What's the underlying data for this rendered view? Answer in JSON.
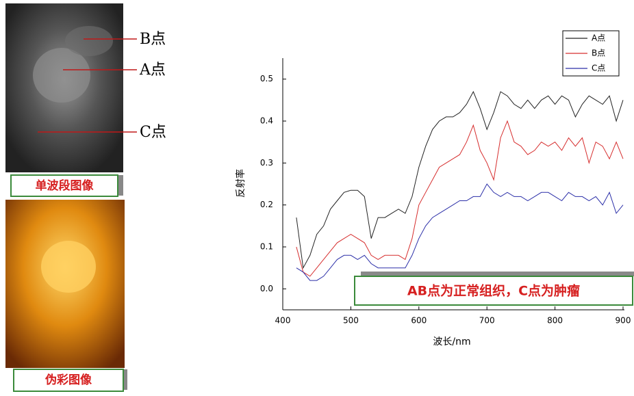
{
  "images": {
    "gray": {
      "caption": "单波段图像",
      "points": [
        "B点",
        "A点",
        "C点"
      ]
    },
    "pseudo": {
      "caption": "伪彩图像"
    }
  },
  "chart_data": {
    "type": "line",
    "xlabel": "波长/nm",
    "ylabel": "反射率",
    "annotation": "AB点为正常组织，C点为肿瘤",
    "xlim": [
      400,
      900
    ],
    "xticks": [
      400,
      500,
      600,
      700,
      800,
      900
    ],
    "ylim": [
      -0.05,
      0.55
    ],
    "yticks": [
      {
        "value": 0,
        "label": "0.0"
      },
      0.1,
      0.2,
      0.3,
      0.4,
      0.5
    ],
    "legend": "upper right",
    "x": [
      420,
      430,
      440,
      450,
      460,
      470,
      480,
      490,
      500,
      510,
      520,
      530,
      540,
      550,
      560,
      570,
      580,
      590,
      600,
      610,
      620,
      630,
      640,
      650,
      660,
      670,
      680,
      690,
      700,
      710,
      720,
      730,
      740,
      750,
      760,
      770,
      780,
      790,
      800,
      810,
      820,
      830,
      840,
      850,
      860,
      870,
      880,
      890,
      900
    ],
    "series": [
      {
        "name": "A点",
        "color": "#222222",
        "values": [
          0.17,
          0.05,
          0.08,
          0.13,
          0.15,
          0.19,
          0.21,
          0.23,
          0.235,
          0.235,
          0.22,
          0.12,
          0.17,
          0.17,
          0.18,
          0.19,
          0.18,
          0.22,
          0.29,
          0.34,
          0.38,
          0.4,
          0.41,
          0.41,
          0.42,
          0.44,
          0.47,
          0.43,
          0.38,
          0.42,
          0.47,
          0.46,
          0.44,
          0.43,
          0.45,
          0.43,
          0.45,
          0.46,
          0.44,
          0.46,
          0.45,
          0.41,
          0.44,
          0.46,
          0.45,
          0.44,
          0.46,
          0.4,
          0.45
        ]
      },
      {
        "name": "B点",
        "color": "#d62d2d",
        "values": [
          0.1,
          0.04,
          0.03,
          0.05,
          0.07,
          0.09,
          0.11,
          0.12,
          0.13,
          0.12,
          0.11,
          0.08,
          0.07,
          0.08,
          0.08,
          0.08,
          0.07,
          0.12,
          0.2,
          0.23,
          0.26,
          0.29,
          0.3,
          0.31,
          0.32,
          0.35,
          0.39,
          0.33,
          0.3,
          0.26,
          0.36,
          0.4,
          0.35,
          0.34,
          0.32,
          0.33,
          0.35,
          0.34,
          0.35,
          0.33,
          0.36,
          0.34,
          0.36,
          0.3,
          0.35,
          0.34,
          0.31,
          0.35,
          0.31
        ]
      },
      {
        "name": "C点",
        "color": "#2b2fa8",
        "values": [
          0.05,
          0.04,
          0.02,
          0.02,
          0.03,
          0.05,
          0.07,
          0.08,
          0.08,
          0.07,
          0.08,
          0.06,
          0.05,
          0.05,
          0.05,
          0.05,
          0.05,
          0.08,
          0.12,
          0.15,
          0.17,
          0.18,
          0.19,
          0.2,
          0.21,
          0.21,
          0.22,
          0.22,
          0.25,
          0.23,
          0.22,
          0.23,
          0.22,
          0.22,
          0.21,
          0.22,
          0.23,
          0.23,
          0.22,
          0.21,
          0.23,
          0.22,
          0.22,
          0.21,
          0.22,
          0.2,
          0.23,
          0.18,
          0.2
        ]
      }
    ]
  }
}
